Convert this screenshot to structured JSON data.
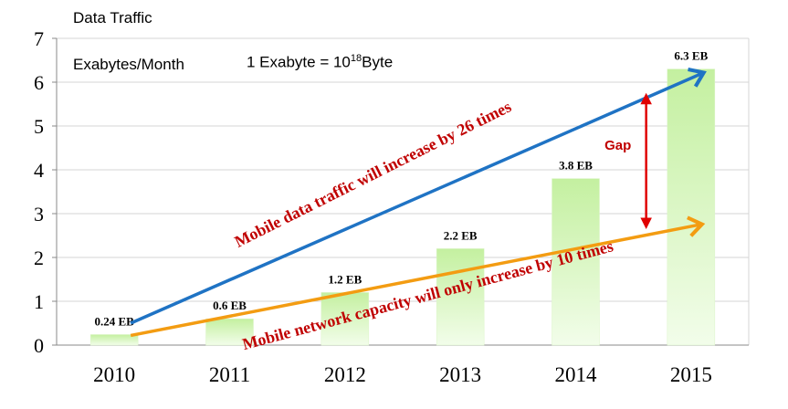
{
  "chart_data": {
    "type": "bar",
    "title": "Data Traffic",
    "ylabel": "Exabytes/Month",
    "definition": {
      "text_before": "1 Exabyte = 10",
      "superscript": "18",
      "text_after": "Byte"
    },
    "categories": [
      "2010",
      "2011",
      "2012",
      "2013",
      "2014",
      "2015"
    ],
    "values": [
      0.24,
      0.6,
      1.2,
      2.2,
      3.8,
      6.3
    ],
    "data_labels": [
      "0.24 EB",
      "0.6 EB",
      "1.2 EB",
      "2.2 EB",
      "3.8 EB",
      "6.3 EB"
    ],
    "ylim": [
      0,
      7
    ],
    "y_ticks": [
      "0",
      "1",
      "2",
      "3",
      "4",
      "5",
      "6",
      "7"
    ],
    "grid": true,
    "annotations": {
      "traffic_arrow_label": "Mobile data traffic will increase by 26 times",
      "capacity_arrow_label": "Mobile network capacity will only increase by 10 times",
      "gap_label": "Gap"
    },
    "colors": {
      "bar_top": "#c4f0a0",
      "bar_bottom": "#f2fdea",
      "traffic_arrow": "#1f73c4",
      "capacity_arrow": "#f39c12",
      "annotation_text": "#c00000",
      "gap_arrow": "#e00000",
      "grid": "#d4d4d4"
    }
  }
}
